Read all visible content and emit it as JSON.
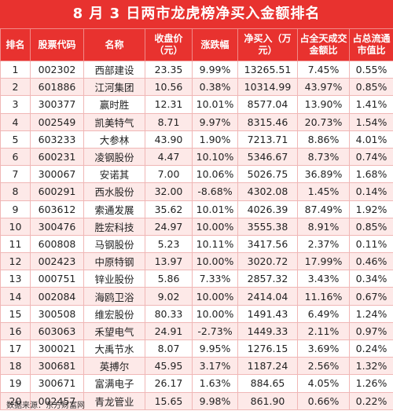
{
  "title": "8 月 3 日两市龙虎榜净买入金额排名",
  "columns": [
    "排名",
    "股票代码",
    "名称",
    "收盘价（元）",
    "涨跌幅",
    "净买入（万元）",
    "占全天成交金额比",
    "占总流通市值比"
  ],
  "rows": [
    [
      "1",
      "002302",
      "西部建设",
      "23.35",
      "9.99%",
      "13265.51",
      "7.45%",
      "0.55%"
    ],
    [
      "2",
      "601886",
      "江河集团",
      "10.56",
      "0.38%",
      "10314.99",
      "43.97%",
      "0.85%"
    ],
    [
      "3",
      "300377",
      "赢时胜",
      "12.31",
      "10.01%",
      "8577.04",
      "13.90%",
      "1.41%"
    ],
    [
      "4",
      "002549",
      "凯美特气",
      "8.71",
      "9.97%",
      "8315.46",
      "20.73%",
      "1.54%"
    ],
    [
      "5",
      "603233",
      "大参林",
      "43.90",
      "1.90%",
      "7213.71",
      "8.86%",
      "4.01%"
    ],
    [
      "6",
      "600231",
      "凌钢股份",
      "4.47",
      "10.10%",
      "5346.67",
      "8.73%",
      "0.74%"
    ],
    [
      "7",
      "300067",
      "安诺其",
      "7.00",
      "10.06%",
      "5026.75",
      "36.89%",
      "1.68%"
    ],
    [
      "8",
      "600291",
      "西水股份",
      "32.00",
      "-8.68%",
      "4302.08",
      "1.45%",
      "0.14%"
    ],
    [
      "9",
      "603612",
      "索通发展",
      "35.62",
      "10.01%",
      "4026.39",
      "87.49%",
      "1.92%"
    ],
    [
      "10",
      "300476",
      "胜宏科技",
      "24.97",
      "10.00%",
      "3555.38",
      "8.91%",
      "0.85%"
    ],
    [
      "11",
      "600808",
      "马钢股份",
      "5.23",
      "10.11%",
      "3417.56",
      "2.37%",
      "0.11%"
    ],
    [
      "12",
      "002423",
      "中原特钢",
      "13.97",
      "10.00%",
      "3020.72",
      "17.99%",
      "0.46%"
    ],
    [
      "13",
      "000751",
      "锌业股份",
      "5.86",
      "7.33%",
      "2857.32",
      "3.43%",
      "0.34%"
    ],
    [
      "14",
      "002084",
      "海鸥卫浴",
      "9.02",
      "10.00%",
      "2414.04",
      "11.16%",
      "0.67%"
    ],
    [
      "15",
      "300508",
      "维宏股份",
      "80.33",
      "10.00%",
      "1491.43",
      "6.49%",
      "1.24%"
    ],
    [
      "16",
      "603063",
      "禾望电气",
      "24.91",
      "-2.73%",
      "1449.33",
      "2.11%",
      "0.97%"
    ],
    [
      "17",
      "300021",
      "大禹节水",
      "8.07",
      "9.95%",
      "1276.15",
      "3.69%",
      "0.24%"
    ],
    [
      "18",
      "300681",
      "英搏尔",
      "45.95",
      "3.17%",
      "1187.24",
      "2.56%",
      "1.32%"
    ],
    [
      "19",
      "300671",
      "富满电子",
      "26.17",
      "1.63%",
      "884.65",
      "4.05%",
      "1.26%"
    ],
    [
      "20",
      "002457",
      "青龙管业",
      "15.65",
      "9.98%",
      "861.90",
      "0.66%",
      "0.22%"
    ]
  ],
  "source": "数据来源：东方财富网",
  "colors": {
    "header_bg": "#e8322f",
    "header_text": "#ffffff",
    "stripe": "#fde9e8"
  }
}
